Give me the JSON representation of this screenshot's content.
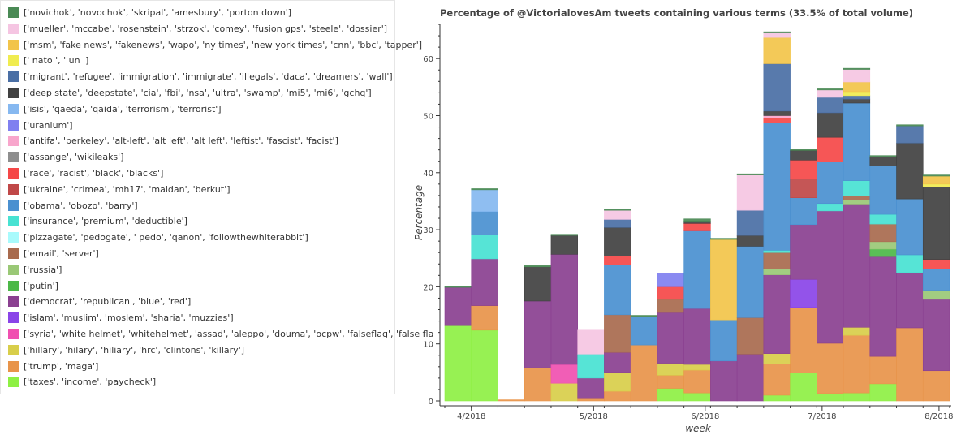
{
  "chart_data": {
    "type": "bar",
    "stacked": true,
    "title": "Percentage of @VictorialovesAm tweets containing various terms (33.5% of total volume)",
    "xlabel": "week",
    "ylabel": "Percentage",
    "ylim": [
      0,
      66
    ],
    "yticks": [
      0,
      10,
      20,
      30,
      40,
      50,
      60
    ],
    "xticks": [
      {
        "label": "4/2018",
        "week": 1
      },
      {
        "label": "5/2018",
        "week": 5.6
      },
      {
        "label": "6/2018",
        "week": 9.8
      },
      {
        "label": "7/2018",
        "week": 14.2
      },
      {
        "label": "8/2018",
        "week": 18.6
      }
    ],
    "week_count": 19,
    "legend": [
      {
        "key": "novichok",
        "label": "['novichok', 'novochok', 'skripal', 'amesbury', 'porton down']",
        "color": "#4a8a55"
      },
      {
        "key": "mueller",
        "label": "['mueller', 'mccabe', 'rosenstein', 'strzok', 'comey', 'fusion gps', 'steele', 'dossier']",
        "color": "#f5c5e2"
      },
      {
        "key": "msm",
        "label": "['msm', 'fake news', 'fakenews', 'wapo', 'ny times', 'new york times', 'cnn', 'bbc', 'tapper']",
        "color": "#f2c44a"
      },
      {
        "key": "nato",
        "label": "[' nato ', ' un ']",
        "color": "#f0ec50"
      },
      {
        "key": "migrant",
        "label": "['migrant', 'refugee', 'immigration', 'immigrate', 'illegals', 'daca', 'dreamers', 'wall']",
        "color": "#4a6fa5"
      },
      {
        "key": "deepstate",
        "label": "['deep state', 'deepstate', 'cia', 'fbi', 'nsa', 'ultra', 'swamp', 'mi5', 'mi6', 'gchq']",
        "color": "#414141"
      },
      {
        "key": "isis",
        "label": "['isis', 'qaeda', 'qaida', 'terrorism', 'terrorist']",
        "color": "#86b8f0"
      },
      {
        "key": "uranium",
        "label": "['uranium']",
        "color": "#8080f0"
      },
      {
        "key": "antifa",
        "label": "['antifa', 'berkeley', 'alt-left', 'alt left', 'alt left', 'leftist', 'fascist', 'facist']",
        "color": "#f8a6cc"
      },
      {
        "key": "assange",
        "label": "['assange', 'wikileaks']",
        "color": "#8e8e8e"
      },
      {
        "key": "race",
        "label": "['race', 'racist', 'black', 'blacks']",
        "color": "#f54848"
      },
      {
        "key": "ukraine",
        "label": "['ukraine', 'crimea', 'mh17', 'maidan', 'berkut']",
        "color": "#c04848"
      },
      {
        "key": "obama",
        "label": "['obama', 'obozo', 'barry']",
        "color": "#4a90d0"
      },
      {
        "key": "insurance",
        "label": "['insurance', 'premium', 'deductible']",
        "color": "#48e2d2"
      },
      {
        "key": "pizzagate",
        "label": "['pizzagate', 'pedogate', ' pedo', 'qanon', 'followthewhiterabbit']",
        "color": "#a8fafc"
      },
      {
        "key": "email",
        "label": "['email', 'server']",
        "color": "#a86a4e"
      },
      {
        "key": "russia",
        "label": "['russia']",
        "color": "#9ac876"
      },
      {
        "key": "putin",
        "label": "['putin']",
        "color": "#4cb848"
      },
      {
        "key": "democrat",
        "label": "['democrat', 'republican', 'blue', 'red']",
        "color": "#8a4090"
      },
      {
        "key": "islam",
        "label": "['islam', 'muslim', 'moslem', 'sharia', 'muzzies']",
        "color": "#8a44e8"
      },
      {
        "key": "syria",
        "label": "['syria', 'white helmet', 'whitehelmet', 'assad', 'aleppo', 'douma', 'ocpw', 'falseflag', 'false fla",
        "color": "#f050b0"
      },
      {
        "key": "hillary",
        "label": "['hillary', 'hilary', 'hiliary', 'hrc', 'clintons', 'killary']",
        "color": "#d8ce4a"
      },
      {
        "key": "trump",
        "label": "['trump', 'maga']",
        "color": "#e8944a"
      },
      {
        "key": "taxes",
        "label": "['taxes', 'income', 'paycheck']",
        "color": "#8ef044"
      }
    ],
    "stack_order": [
      "taxes",
      "trump",
      "hillary",
      "syria",
      "islam",
      "democrat",
      "putin",
      "russia",
      "email",
      "pizzagate",
      "insurance",
      "obama",
      "ukraine",
      "race",
      "assange",
      "antifa",
      "uranium",
      "isis",
      "deepstate",
      "migrant",
      "nato",
      "msm",
      "mueller",
      "novichok"
    ],
    "weeks": [
      {
        "taxes": 13.2,
        "trump": 0,
        "democrat": 6.7,
        "novichok": 0.2
      },
      {
        "taxes": 12.4,
        "trump": 4.3,
        "democrat": 8.2,
        "insurance": 4.2,
        "obama": 4.1,
        "isis": 3.8,
        "novichok": 0.2
      },
      {
        "taxes": 0,
        "trump": 0.2
      },
      {
        "trump": 5.8,
        "democrat": 11.7,
        "deepstate": 6.0,
        "novichok": 0.2
      },
      {
        "hillary": 3.1,
        "syria": 3.3,
        "democrat": 19.3,
        "deepstate": 3.3,
        "novichok": 0.2
      },
      {
        "trump": 0.4,
        "democrat": 3.6,
        "insurance": 4.2,
        "mueller": 4.2
      },
      {
        "trump": 1.7,
        "hillary": 3.3,
        "democrat": 3.5,
        "email": 6.6,
        "obama": 8.7,
        "race": 1.6,
        "deepstate": 5.0,
        "migrant": 1.4,
        "mueller": 1.6,
        "novichok": 0.2
      },
      {
        "trump": 9.8,
        "obama": 5.0,
        "novichok": 0.2
      },
      {
        "taxes": 2.2,
        "trump": 2.3,
        "hillary": 2.1,
        "democrat": 8.9,
        "email": 2.3,
        "race": 2.2,
        "uranium": 2.4
      },
      {
        "taxes": 1.4,
        "trump": 4.0,
        "hillary": 1.0,
        "democrat": 9.8,
        "obama": 13.6,
        "race": 1.3,
        "deepstate": 0.4,
        "novichok": 0.4
      },
      {
        "taxes": 0,
        "democrat": 7.0,
        "obama": 7.2,
        "msm": 14.1,
        "novichok": 0.2
      },
      {
        "taxes": 0,
        "democrat": 8.2,
        "email": 6.4,
        "obama": 12.5,
        "deepstate": 1.9,
        "migrant": 4.4,
        "mueller": 6.2,
        "novichok": 0.2
      },
      {
        "taxes": 1.0,
        "trump": 5.5,
        "hillary": 1.8,
        "democrat": 13.8,
        "russia": 1.0,
        "email": 2.9,
        "obama": 22.3,
        "insurance": 0.4,
        "race": 0.9,
        "antifa": 0.4,
        "deepstate": 0.8,
        "migrant": 8.3,
        "msm": 4.6,
        "mueller": 0.8,
        "novichok": 0.2
      },
      {
        "taxes": 4.9,
        "trump": 11.5,
        "islam": 4.9,
        "democrat": 9.6,
        "obama": 4.7,
        "ukraine": 3.3,
        "race": 3.3,
        "deepstate": 1.7,
        "novichok": 0.2
      },
      {
        "taxes": 1.3,
        "trump": 8.8,
        "democrat": 23.2,
        "insurance": 1.3,
        "obama": 7.3,
        "race": 4.3,
        "deepstate": 4.3,
        "migrant": 2.7,
        "mueller": 1.3,
        "novichok": 0.2
      },
      {
        "taxes": 1.4,
        "trump": 10.1,
        "hillary": 1.4,
        "democrat": 21.6,
        "email": 0.7,
        "russia": 0.7,
        "insurance": 2.7,
        "obama": 13.6,
        "deepstate": 0.7,
        "migrant": 0.6,
        "nato": 0.7,
        "msm": 1.7,
        "mueller": 2.2,
        "novichok": 0.2
      },
      {
        "taxes": 3.0,
        "trump": 4.8,
        "democrat": 17.5,
        "putin": 1.3,
        "russia": 1.3,
        "email": 3.1,
        "insurance": 1.7,
        "obama": 8.5,
        "deepstate": 1.6,
        "novichok": 0.2
      },
      {
        "trump": 12.8,
        "democrat": 9.7,
        "insurance": 3.1,
        "obama": 9.8,
        "deepstate": 9.8,
        "migrant": 3.0,
        "novichok": 0.2
      },
      {
        "trump": 5.3,
        "democrat": 12.5,
        "russia": 1.6,
        "obama": 3.7,
        "race": 1.7,
        "deepstate": 12.7,
        "msm": 1.4,
        "nato": 0.5,
        "novichok": 0.2
      }
    ]
  }
}
